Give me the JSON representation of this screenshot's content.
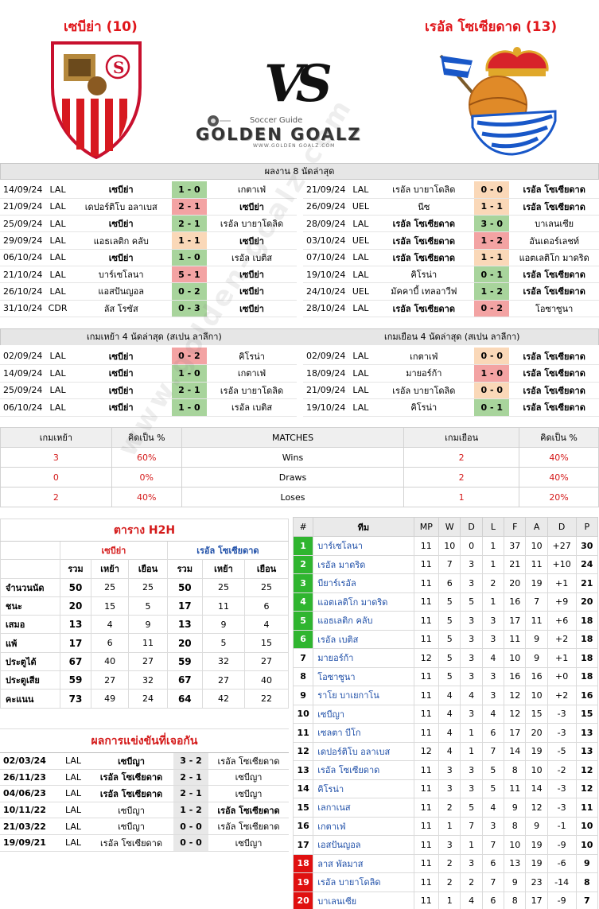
{
  "header": {
    "home_team": "เซบีย่า (10)",
    "away_team": "เรอัล โซเซียดาด (13)",
    "vs": "VS",
    "brand_small": "Soccer Guide",
    "brand_big": "GOLDEN GOALZ",
    "brand_url": "WWW.GOLDEN GOALZ.COM"
  },
  "last8": {
    "title": "ผลงาน 8 นัดล่าสุด",
    "home": [
      {
        "date": "14/09/24",
        "comp": "LAL",
        "home": "เซบีย่า",
        "score": "1 - 0",
        "away": "เกตาเฟ่",
        "res": "win",
        "hl": "home"
      },
      {
        "date": "21/09/24",
        "comp": "LAL",
        "home": "เดปอร์ติโบ อลาเบส",
        "score": "2 - 1",
        "away": "เซบีย่า",
        "res": "lose",
        "hl": "away"
      },
      {
        "date": "25/09/24",
        "comp": "LAL",
        "home": "เซบีย่า",
        "score": "2 - 1",
        "away": "เรอัล บายาโดลิด",
        "res": "win",
        "hl": "home"
      },
      {
        "date": "29/09/24",
        "comp": "LAL",
        "home": "แอธเลติก คลับ",
        "score": "1 - 1",
        "away": "เซบีย่า",
        "res": "draw",
        "hl": "away"
      },
      {
        "date": "06/10/24",
        "comp": "LAL",
        "home": "เซบีย่า",
        "score": "1 - 0",
        "away": "เรอัล เบติส",
        "res": "win",
        "hl": "home"
      },
      {
        "date": "21/10/24",
        "comp": "LAL",
        "home": "บาร์เซโลนา",
        "score": "5 - 1",
        "away": "เซบีย่า",
        "res": "lose",
        "hl": "away"
      },
      {
        "date": "26/10/24",
        "comp": "LAL",
        "home": "แอสปันญอล",
        "score": "0 - 2",
        "away": "เซบีย่า",
        "res": "win",
        "hl": "away"
      },
      {
        "date": "31/10/24",
        "comp": "CDR",
        "home": "ลัส โรซัส",
        "score": "0 - 3",
        "away": "เซบีย่า",
        "res": "win",
        "hl": "away"
      }
    ],
    "away": [
      {
        "date": "21/09/24",
        "comp": "LAL",
        "home": "เรอัล บายาโดลิด",
        "score": "0 - 0",
        "away": "เรอัล โซเซียดาด",
        "res": "draw",
        "hl": "away"
      },
      {
        "date": "26/09/24",
        "comp": "UEL",
        "home": "นีซ",
        "score": "1 - 1",
        "away": "เรอัล โซเซียดาด",
        "res": "draw",
        "hl": "away"
      },
      {
        "date": "28/09/24",
        "comp": "LAL",
        "home": "เรอัล โซเซียดาด",
        "score": "3 - 0",
        "away": "บาเลนเซีย",
        "res": "win",
        "hl": "home"
      },
      {
        "date": "03/10/24",
        "comp": "UEL",
        "home": "เรอัล โซเซียดาด",
        "score": "1 - 2",
        "away": "อันเดอร์เลชท์",
        "res": "lose",
        "hl": "home"
      },
      {
        "date": "07/10/24",
        "comp": "LAL",
        "home": "เรอัล โซเซียดาด",
        "score": "1 - 1",
        "away": "แอตเลติโก มาดริด",
        "res": "draw",
        "hl": "home"
      },
      {
        "date": "19/10/24",
        "comp": "LAL",
        "home": "คิโรน่า",
        "score": "0 - 1",
        "away": "เรอัล โซเซียดาด",
        "res": "win",
        "hl": "away"
      },
      {
        "date": "24/10/24",
        "comp": "UEL",
        "home": "มัคคาบี้ เทลอาวีฟ",
        "score": "1 - 2",
        "away": "เรอัล โซเซียดาด",
        "res": "win",
        "hl": "away"
      },
      {
        "date": "28/10/24",
        "comp": "LAL",
        "home": "เรอัล โซเซียดาด",
        "score": "0 - 2",
        "away": "โอซาซูนา",
        "res": "lose",
        "hl": "home"
      }
    ]
  },
  "last4": {
    "home_title": "เกมเหย้า 4 นัดล่าสุด (สเปน ลาลีกา)",
    "away_title": "เกมเยือน 4 นัดล่าสุด (สเปน ลาลีกา)",
    "home": [
      {
        "date": "02/09/24",
        "comp": "LAL",
        "home": "เซบีย่า",
        "score": "0 - 2",
        "away": "คิโรน่า",
        "res": "lose",
        "hl": "home"
      },
      {
        "date": "14/09/24",
        "comp": "LAL",
        "home": "เซบีย่า",
        "score": "1 - 0",
        "away": "เกตาเฟ่",
        "res": "win",
        "hl": "home"
      },
      {
        "date": "25/09/24",
        "comp": "LAL",
        "home": "เซบีย่า",
        "score": "2 - 1",
        "away": "เรอัล บายาโดลิด",
        "res": "win",
        "hl": "home"
      },
      {
        "date": "06/10/24",
        "comp": "LAL",
        "home": "เซบีย่า",
        "score": "1 - 0",
        "away": "เรอัล เบติส",
        "res": "win",
        "hl": "home"
      }
    ],
    "away": [
      {
        "date": "02/09/24",
        "comp": "LAL",
        "home": "เกตาเฟ่",
        "score": "0 - 0",
        "away": "เรอัล โซเซียดาด",
        "res": "draw",
        "hl": "away"
      },
      {
        "date": "18/09/24",
        "comp": "LAL",
        "home": "มายอร์ก้า",
        "score": "1 - 0",
        "away": "เรอัล โซเซียดาด",
        "res": "lose",
        "hl": "away"
      },
      {
        "date": "21/09/24",
        "comp": "LAL",
        "home": "เรอัล บายาโดลิด",
        "score": "0 - 0",
        "away": "เรอัล โซเซียดาด",
        "res": "draw",
        "hl": "away"
      },
      {
        "date": "19/10/24",
        "comp": "LAL",
        "home": "คิโรน่า",
        "score": "0 - 1",
        "away": "เรอัล โซเซียดาด",
        "res": "win",
        "hl": "away"
      }
    ]
  },
  "summary": {
    "headers": [
      "เกมเหย้า",
      "คิดเป็น %",
      "MATCHES",
      "เกมเยือน",
      "คิดเป็น %"
    ],
    "rows": [
      {
        "h": "3",
        "hp": "60%",
        "label": "Wins",
        "a": "2",
        "ap": "40%"
      },
      {
        "h": "0",
        "hp": "0%",
        "label": "Draws",
        "a": "2",
        "ap": "40%"
      },
      {
        "h": "2",
        "hp": "40%",
        "label": "Loses",
        "a": "1",
        "ap": "20%"
      }
    ]
  },
  "h2h": {
    "title": "ตาราง H2H",
    "home": "เซบีย่า",
    "away": "เรอัล โซเซียดาด",
    "cols": [
      "รวม",
      "เหย้า",
      "เยือน",
      "รวม",
      "เหย้า",
      "เยือน"
    ],
    "rows": [
      {
        "label": "จำนวนนัด",
        "v": [
          "50",
          "25",
          "25",
          "50",
          "25",
          "25"
        ]
      },
      {
        "label": "ชนะ",
        "v": [
          "20",
          "15",
          "5",
          "17",
          "11",
          "6"
        ]
      },
      {
        "label": "เสมอ",
        "v": [
          "13",
          "4",
          "9",
          "13",
          "9",
          "4"
        ]
      },
      {
        "label": "แพ้",
        "v": [
          "17",
          "6",
          "11",
          "20",
          "5",
          "15"
        ]
      },
      {
        "label": "ประตูได้",
        "v": [
          "67",
          "40",
          "27",
          "59",
          "32",
          "27"
        ]
      },
      {
        "label": "ประตูเสีย",
        "v": [
          "59",
          "27",
          "32",
          "67",
          "27",
          "40"
        ]
      },
      {
        "label": "คะแนน",
        "v": [
          "73",
          "49",
          "24",
          "64",
          "42",
          "22"
        ]
      }
    ]
  },
  "past": {
    "title": "ผลการแข่งขันที่เจอกัน",
    "rows": [
      {
        "date": "02/03/24",
        "comp": "LAL",
        "home": "เซบีญา",
        "score": "3 - 2",
        "away": "เรอัล โซเซียดาด",
        "hl": "home"
      },
      {
        "date": "26/11/23",
        "comp": "LAL",
        "home": "เรอัล โซเซียดาด",
        "score": "2 - 1",
        "away": "เซบีญา",
        "hl": "home"
      },
      {
        "date": "04/06/23",
        "comp": "LAL",
        "home": "เรอัล โซเซียดาด",
        "score": "2 - 1",
        "away": "เซบีญา",
        "hl": "home"
      },
      {
        "date": "10/11/22",
        "comp": "LAL",
        "home": "เซบีญา",
        "score": "1 - 2",
        "away": "เรอัล โซเซียดาด",
        "hl": "away"
      },
      {
        "date": "21/03/22",
        "comp": "LAL",
        "home": "เซบีญา",
        "score": "0 - 0",
        "away": "เรอัล โซเซียดาด",
        "hl": "none"
      },
      {
        "date": "19/09/21",
        "comp": "LAL",
        "home": "เรอัล โซเซียดาด",
        "score": "0 - 0",
        "away": "เซบีญา",
        "hl": "none"
      }
    ]
  },
  "standings": {
    "headers": [
      "#",
      "ทีม",
      "MP",
      "W",
      "D",
      "L",
      "F",
      "A",
      "D",
      "P"
    ],
    "rows": [
      {
        "r": "1",
        "t": "บาร์เซโลนา",
        "mp": "11",
        "w": "10",
        "d": "0",
        "l": "1",
        "f": "37",
        "a": "10",
        "gd": "+27",
        "p": "30",
        "z": "g"
      },
      {
        "r": "2",
        "t": "เรอัล มาดริด",
        "mp": "11",
        "w": "7",
        "d": "3",
        "l": "1",
        "f": "21",
        "a": "11",
        "gd": "+10",
        "p": "24",
        "z": "g"
      },
      {
        "r": "3",
        "t": "บียาร์เรอัล",
        "mp": "11",
        "w": "6",
        "d": "3",
        "l": "2",
        "f": "20",
        "a": "19",
        "gd": "+1",
        "p": "21",
        "z": "g"
      },
      {
        "r": "4",
        "t": "แอตเลติโก มาดริด",
        "mp": "11",
        "w": "5",
        "d": "5",
        "l": "1",
        "f": "16",
        "a": "7",
        "gd": "+9",
        "p": "20",
        "z": "g"
      },
      {
        "r": "5",
        "t": "แอธเลติก คลับ",
        "mp": "11",
        "w": "5",
        "d": "3",
        "l": "3",
        "f": "17",
        "a": "11",
        "gd": "+6",
        "p": "18",
        "z": "g"
      },
      {
        "r": "6",
        "t": "เรอัล เบติส",
        "mp": "11",
        "w": "5",
        "d": "3",
        "l": "3",
        "f": "11",
        "a": "9",
        "gd": "+2",
        "p": "18",
        "z": "g"
      },
      {
        "r": "7",
        "t": "มายอร์ก้า",
        "mp": "12",
        "w": "5",
        "d": "3",
        "l": "4",
        "f": "10",
        "a": "9",
        "gd": "+1",
        "p": "18",
        "z": ""
      },
      {
        "r": "8",
        "t": "โอซาซูนา",
        "mp": "11",
        "w": "5",
        "d": "3",
        "l": "3",
        "f": "16",
        "a": "16",
        "gd": "+0",
        "p": "18",
        "z": ""
      },
      {
        "r": "9",
        "t": "ราโย บาเยกาโน",
        "mp": "11",
        "w": "4",
        "d": "4",
        "l": "3",
        "f": "12",
        "a": "10",
        "gd": "+2",
        "p": "16",
        "z": ""
      },
      {
        "r": "10",
        "t": "เซบีญา",
        "mp": "11",
        "w": "4",
        "d": "3",
        "l": "4",
        "f": "12",
        "a": "15",
        "gd": "-3",
        "p": "15",
        "z": ""
      },
      {
        "r": "11",
        "t": "เซลตา บีโก",
        "mp": "11",
        "w": "4",
        "d": "1",
        "l": "6",
        "f": "17",
        "a": "20",
        "gd": "-3",
        "p": "13",
        "z": ""
      },
      {
        "r": "12",
        "t": "เดปอร์ติโบ อลาเบส",
        "mp": "12",
        "w": "4",
        "d": "1",
        "l": "7",
        "f": "14",
        "a": "19",
        "gd": "-5",
        "p": "13",
        "z": ""
      },
      {
        "r": "13",
        "t": "เรอัล โซเซียดาด",
        "mp": "11",
        "w": "3",
        "d": "3",
        "l": "5",
        "f": "8",
        "a": "10",
        "gd": "-2",
        "p": "12",
        "z": ""
      },
      {
        "r": "14",
        "t": "คิโรน่า",
        "mp": "11",
        "w": "3",
        "d": "3",
        "l": "5",
        "f": "11",
        "a": "14",
        "gd": "-3",
        "p": "12",
        "z": ""
      },
      {
        "r": "15",
        "t": "เลกาเนส",
        "mp": "11",
        "w": "2",
        "d": "5",
        "l": "4",
        "f": "9",
        "a": "12",
        "gd": "-3",
        "p": "11",
        "z": ""
      },
      {
        "r": "16",
        "t": "เกตาเฟ่",
        "mp": "11",
        "w": "1",
        "d": "7",
        "l": "3",
        "f": "8",
        "a": "9",
        "gd": "-1",
        "p": "10",
        "z": ""
      },
      {
        "r": "17",
        "t": "เอสปันญอล",
        "mp": "11",
        "w": "3",
        "d": "1",
        "l": "7",
        "f": "10",
        "a": "19",
        "gd": "-9",
        "p": "10",
        "z": ""
      },
      {
        "r": "18",
        "t": "ลาส พัลมาส",
        "mp": "11",
        "w": "2",
        "d": "3",
        "l": "6",
        "f": "13",
        "a": "19",
        "gd": "-6",
        "p": "9",
        "z": "r"
      },
      {
        "r": "19",
        "t": "เรอัล บายาโดลิด",
        "mp": "11",
        "w": "2",
        "d": "2",
        "l": "7",
        "f": "9",
        "a": "23",
        "gd": "-14",
        "p": "8",
        "z": "r"
      },
      {
        "r": "20",
        "t": "บาเลนเซีย",
        "mp": "11",
        "w": "1",
        "d": "4",
        "l": "6",
        "f": "8",
        "a": "17",
        "gd": "-9",
        "p": "7",
        "z": "r"
      }
    ]
  }
}
